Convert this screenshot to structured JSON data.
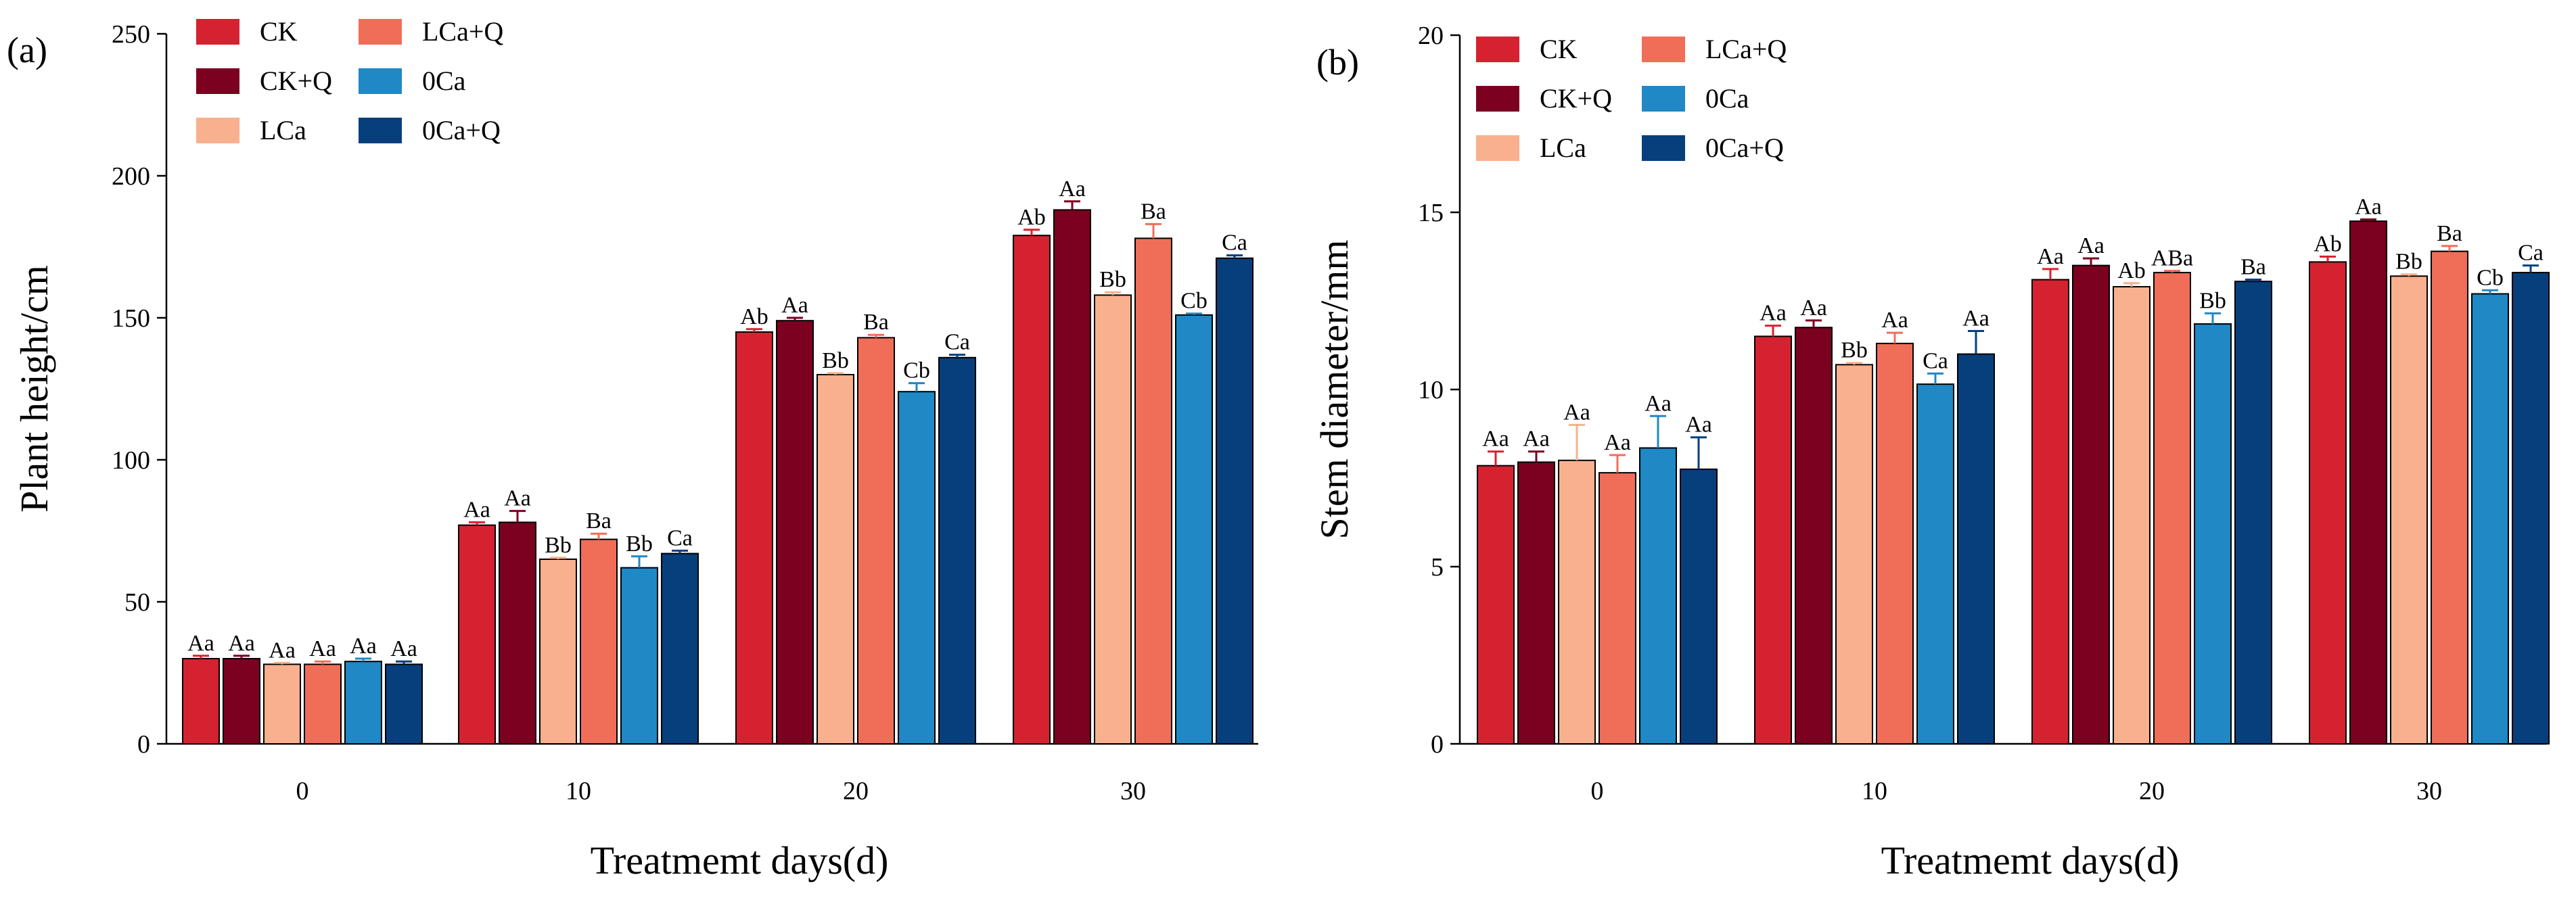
{
  "chart_data": [
    {
      "type": "bar",
      "panel_label": "(a)",
      "xlabel": "Treatmemt days(d)",
      "ylabel": "Plant height/cm",
      "ylim": [
        0,
        250
      ],
      "yticks": [
        "0",
        "50",
        "100",
        "150",
        "200",
        "250"
      ],
      "categories": [
        "0",
        "10",
        "20",
        "30"
      ],
      "legend_position": "top-left",
      "series": [
        {
          "name": "CK",
          "color": "#d62230",
          "values": [
            30,
            77,
            145,
            179
          ],
          "errors": [
            1,
            1,
            1,
            2
          ],
          "labels": [
            "Aa",
            "Aa",
            "Ab",
            "Ab"
          ]
        },
        {
          "name": "CK+Q",
          "color": "#7c0020",
          "values": [
            30,
            78,
            149,
            188
          ],
          "errors": [
            1,
            4,
            1,
            3
          ],
          "labels": [
            "Aa",
            "Aa",
            "Aa",
            "Aa"
          ]
        },
        {
          "name": "LCa",
          "color": "#f9b08e",
          "values": [
            28,
            65,
            130,
            158
          ],
          "errors": [
            0.5,
            0.5,
            0.5,
            1
          ],
          "labels": [
            "Aa",
            "Bb",
            "Bb",
            "Bb"
          ]
        },
        {
          "name": "LCa+Q",
          "color": "#f06e58",
          "values": [
            28,
            72,
            143,
            178
          ],
          "errors": [
            1,
            2,
            1,
            5
          ],
          "labels": [
            "Aa",
            "Ba",
            "Ba",
            "Ba"
          ]
        },
        {
          "name": "0Ca",
          "color": "#1f88c5",
          "values": [
            29,
            62,
            124,
            151
          ],
          "errors": [
            1,
            4,
            3,
            0.5
          ],
          "labels": [
            "Aa",
            "Bb",
            "Cb",
            "Cb"
          ]
        },
        {
          "name": "0Ca+Q",
          "color": "#073f7c",
          "values": [
            28,
            67,
            136,
            171
          ],
          "errors": [
            1,
            1,
            1,
            1
          ],
          "labels": [
            "Aa",
            "Ca",
            "Ca",
            "Ca"
          ]
        }
      ]
    },
    {
      "type": "bar",
      "panel_label": "(b)",
      "xlabel": "Treatmemt days(d)",
      "ylabel": "Stem diameter/mm",
      "ylim": [
        0,
        20
      ],
      "yticks": [
        "0",
        "5",
        "10",
        "15",
        "20"
      ],
      "categories": [
        "0",
        "10",
        "20",
        "30"
      ],
      "legend_position": "top-left",
      "series": [
        {
          "name": "CK",
          "color": "#d62230",
          "values": [
            7.85,
            11.5,
            13.1,
            13.6
          ],
          "errors": [
            0.4,
            0.3,
            0.3,
            0.15
          ],
          "labels": [
            "Aa",
            "Aa",
            "Aa",
            "Ab"
          ]
        },
        {
          "name": "CK+Q",
          "color": "#7c0020",
          "values": [
            7.95,
            11.75,
            13.5,
            14.75
          ],
          "errors": [
            0.3,
            0.2,
            0.2,
            0.05
          ],
          "labels": [
            "Aa",
            "Aa",
            "Aa",
            "Aa"
          ]
        },
        {
          "name": "LCa",
          "color": "#f9b08e",
          "values": [
            8.0,
            10.7,
            12.9,
            13.2
          ],
          "errors": [
            1.0,
            0.05,
            0.1,
            0.05
          ],
          "labels": [
            "Aa",
            "Bb",
            "Ab",
            "Bb"
          ]
        },
        {
          "name": "LCa+Q",
          "color": "#f06e58",
          "values": [
            7.65,
            11.3,
            13.3,
            13.9
          ],
          "errors": [
            0.5,
            0.3,
            0.05,
            0.15
          ],
          "labels": [
            "Aa",
            "Aa",
            "ABa",
            "Ba"
          ]
        },
        {
          "name": "0Ca",
          "color": "#1f88c5",
          "values": [
            8.35,
            10.15,
            11.85,
            12.7
          ],
          "errors": [
            0.9,
            0.3,
            0.3,
            0.1
          ],
          "labels": [
            "Aa",
            "Ca",
            "Bb",
            "Cb"
          ]
        },
        {
          "name": "0Ca+Q",
          "color": "#073f7c",
          "values": [
            7.75,
            11.0,
            13.05,
            13.3
          ],
          "errors": [
            0.9,
            0.65,
            0.05,
            0.2
          ],
          "labels": [
            "Aa",
            "Aa",
            "Ba",
            "Ca"
          ]
        }
      ]
    }
  ]
}
